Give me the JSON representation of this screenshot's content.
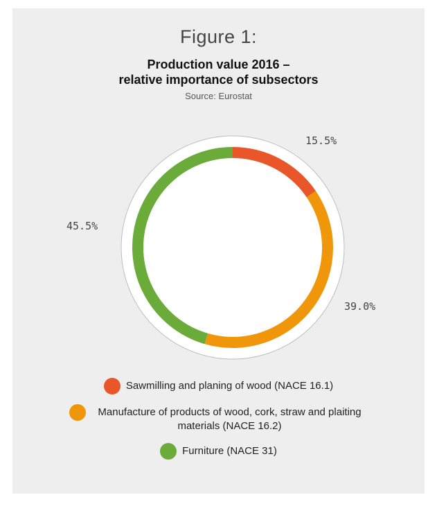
{
  "figure_label": "Figure 1:",
  "title_line1": "Production value 2016 –",
  "title_line2": "relative importance of subsectors",
  "source": "Source: Eurostat",
  "chart_data": {
    "type": "pie",
    "variant": "donut",
    "start_angle_deg": 0,
    "direction": "clockwise",
    "slices": [
      {
        "label": "Sawmilling and planing of wood (NACE 16.1)",
        "value": 15.5,
        "display": "15.5%",
        "color": "#e8562a"
      },
      {
        "label": "Manufacture of products of wood, cork, straw and plaiting materials (NACE 16.2)",
        "value": 39.0,
        "display": "39.0%",
        "color": "#f0960a"
      },
      {
        "label": "Furniture (NACE 31)",
        "value": 45.5,
        "display": "45.5%",
        "color": "#6aab3a"
      }
    ],
    "legend_position": "bottom"
  }
}
